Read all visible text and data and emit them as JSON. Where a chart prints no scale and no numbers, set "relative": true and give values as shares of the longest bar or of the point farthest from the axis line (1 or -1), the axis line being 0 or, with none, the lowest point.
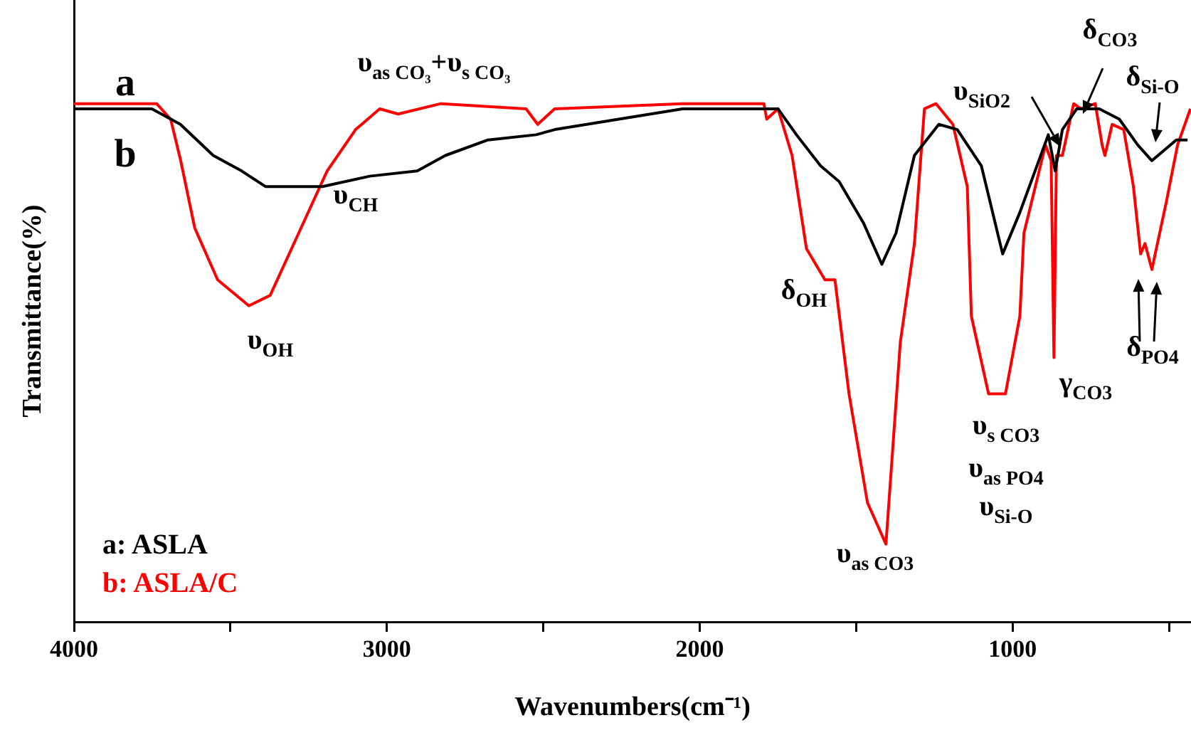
{
  "chart_data": {
    "type": "line",
    "relative": true,
    "xlabel": "Wavenumbers(cm⁻¹)",
    "ylabel": "Transmittance(%)",
    "xlim": [
      4000,
      430
    ],
    "xticks": [
      4000,
      {
        "value": 3500,
        "label": null
      },
      3000,
      {
        "value": 2500,
        "label": null
      },
      2000,
      {
        "value": 1500,
        "label": null
      },
      1000,
      {
        "value": 500,
        "label": null
      }
    ],
    "grid": false,
    "legend": "bottom left",
    "marker": "none",
    "line_style": "solid",
    "series": [
      {
        "name": "a: ASLA",
        "color": "#000000",
        "x": [
          4000,
          3751,
          3660,
          3555,
          3464,
          3388,
          3206,
          3055,
          2903,
          2813,
          2677,
          2523,
          2463,
          2055,
          1750,
          1691,
          1614,
          1555,
          1477,
          1418,
          1373,
          1314,
          1236,
          1177,
          1100,
          1032,
          977,
          886,
          864,
          841,
          795,
          723,
          659,
          600,
          555,
          477,
          441
        ],
        "values": [
          0.99,
          0.99,
          0.96,
          0.9,
          0.87,
          0.84,
          0.84,
          0.86,
          0.87,
          0.9,
          0.93,
          0.94,
          0.95,
          0.99,
          0.99,
          0.94,
          0.88,
          0.85,
          0.77,
          0.69,
          0.75,
          0.9,
          0.96,
          0.95,
          0.88,
          0.71,
          0.79,
          0.94,
          0.87,
          0.95,
          0.99,
          0.99,
          0.97,
          0.92,
          0.89,
          0.93,
          0.93
        ]
      },
      {
        "name": "b: ASLA/C",
        "color": "#ff0000",
        "x": [
          4000,
          3736,
          3691,
          3659,
          3614,
          3541,
          3441,
          3373,
          3282,
          3191,
          3100,
          3023,
          2964,
          2827,
          2555,
          2518,
          2464,
          2055,
          1795,
          1786,
          1750,
          1705,
          1659,
          1600,
          1568,
          1523,
          1464,
          1405,
          1359,
          1314,
          1282,
          1245,
          1191,
          1145,
          1132,
          1077,
          1023,
          977,
          964,
          895,
          877,
          868,
          860,
          841,
          805,
          782,
          736,
          714,
          705,
          682,
          645,
          614,
          591,
          577,
          555,
          509,
          473,
          432
        ],
        "values": [
          1,
          1,
          0.97,
          0.89,
          0.76,
          0.66,
          0.61,
          0.63,
          0.75,
          0.87,
          0.95,
          0.99,
          0.98,
          1,
          0.99,
          0.96,
          0.99,
          1,
          1,
          0.97,
          0.99,
          0.9,
          0.72,
          0.66,
          0.66,
          0.44,
          0.23,
          0.15,
          0.54,
          0.73,
          0.99,
          1,
          0.96,
          0.84,
          0.59,
          0.44,
          0.44,
          0.59,
          0.75,
          0.92,
          0.89,
          0.51,
          0.9,
          0.9,
          1,
          0.99,
          1,
          0.92,
          0.9,
          0.96,
          0.95,
          0.84,
          0.71,
          0.73,
          0.68,
          0.81,
          0.92,
          0.99
        ]
      }
    ],
    "annotations": [
      "a",
      "b",
      "υ$_{as CO₃}$+υ$_{s CO₃}$",
      "υ$_{CH}$",
      "υ$_{OH}$",
      "δ$_{OH}$",
      "υ$_{as CO3}$",
      "υ$_{s CO3}$",
      "υ$_{as PO4}$",
      "υ$_{Si-O}$",
      "γ$_{CO3}$",
      "υ$_{SiO2}$",
      "δ$_{CO3}$",
      "δ$_{Si-O}$",
      "δ$_{PO4}$"
    ]
  }
}
